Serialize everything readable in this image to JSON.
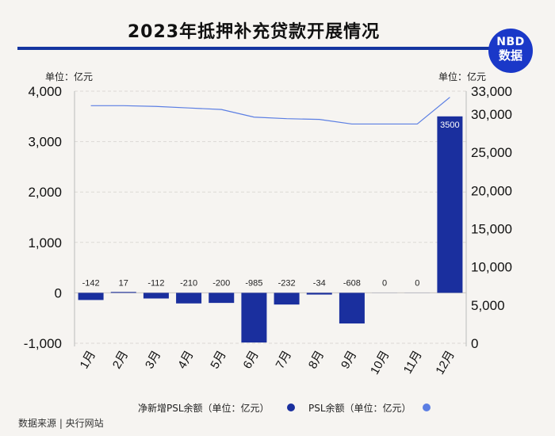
{
  "title": "2023年抵押补充贷款开展情况",
  "logo": {
    "line1": "NBD",
    "line2": "数据"
  },
  "unit_left": "单位：亿元",
  "unit_right": "单位：亿元",
  "source": "数据来源 | 央行网站",
  "chart_data": {
    "type": "bar",
    "categories": [
      "1月",
      "2月",
      "3月",
      "4月",
      "5月",
      "6月",
      "7月",
      "8月",
      "9月",
      "10月",
      "11月",
      "12月"
    ],
    "series": [
      {
        "name": "净新增PSL余额（单位：亿元）",
        "type": "bar",
        "axis": "left",
        "color": "#1a2f9e",
        "values": [
          -142,
          17,
          -112,
          -210,
          -200,
          -985,
          -232,
          -34,
          -608,
          0,
          0,
          3500
        ],
        "labels": [
          "-142",
          "17",
          "-112",
          "-210",
          "-200",
          "-985",
          "-232",
          "-34",
          "-608",
          "0",
          "0",
          "3500"
        ]
      },
      {
        "name": "PSL余额（单位：亿元）",
        "type": "line",
        "axis": "right",
        "color": "#5b7ee3",
        "values": [
          31100,
          31100,
          31000,
          30800,
          30600,
          29600,
          29400,
          29300,
          28700,
          28700,
          28700,
          32200
        ]
      }
    ],
    "y_left": {
      "min": -1000,
      "max": 4000,
      "ticks": [
        "-1,000",
        "0",
        "1,000",
        "2,000",
        "3,000",
        "4,000"
      ],
      "tick_values": [
        -1000,
        0,
        1000,
        2000,
        3000,
        4000
      ]
    },
    "y_right": {
      "min": 0,
      "max": 33000,
      "ticks": [
        "0",
        "5,000",
        "10,000",
        "15,000",
        "20,000",
        "25,000",
        "30,000",
        "33,000"
      ],
      "tick_values": [
        0,
        5000,
        10000,
        15000,
        20000,
        25000,
        30000,
        33000
      ]
    },
    "grid": true,
    "legend_position": "bottom"
  }
}
